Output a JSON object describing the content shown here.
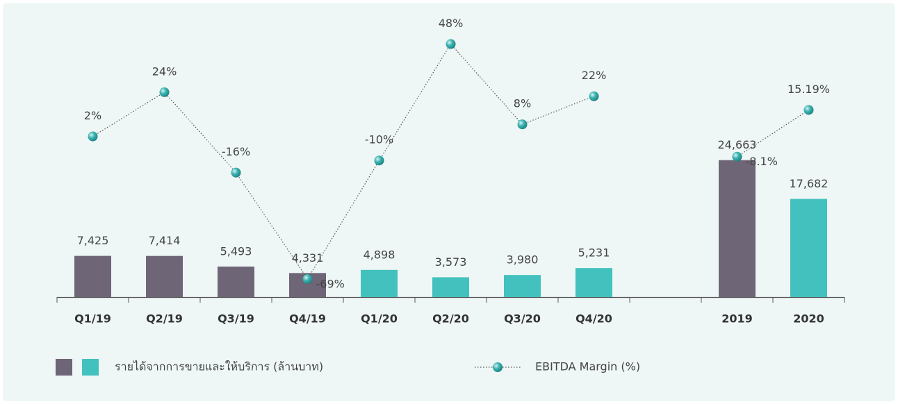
{
  "chart_data": {
    "type": "bar",
    "categories": [
      "Q1/19",
      "Q2/19",
      "Q3/19",
      "Q4/19",
      "Q1/20",
      "Q2/20",
      "Q3/20",
      "Q4/20",
      null,
      "2019",
      "2020"
    ],
    "ylim": [
      0,
      51000
    ],
    "y2lim": [
      -78,
      63
    ],
    "series": [
      {
        "name": "รายได้จากการขายและให้บริการ (ล้านบาท)",
        "type": "bar",
        "colors": [
          "#6e6577",
          "#6e6577",
          "#6e6577",
          "#6e6577",
          "#43c1be",
          "#43c1be",
          "#43c1be",
          "#43c1be",
          null,
          "#6e6577",
          "#43c1be"
        ],
        "legend_colors": [
          "#6e6577",
          "#43c1be"
        ],
        "values": [
          7425,
          7414,
          5493,
          4331,
          4898,
          3573,
          3980,
          5231,
          null,
          24663,
          17682
        ],
        "value_labels": [
          "7,425",
          "7,414",
          "5,493",
          "4,331",
          "4,898",
          "3,573",
          "3,980",
          "5,231",
          null,
          "24,663",
          "17,682"
        ]
      },
      {
        "name": "EBITDA Margin (%)",
        "type": "line",
        "axis": "y2",
        "color": "#2fa3a3",
        "values": [
          2,
          24,
          -16,
          -69,
          -10,
          48,
          8,
          22,
          null,
          -8.1,
          15.19
        ],
        "value_labels": [
          "2%",
          "24%",
          "-16%",
          "-69%",
          "-10%",
          "48%",
          "8%",
          "22%",
          null,
          "-8.1%",
          "15.19%"
        ]
      }
    ]
  }
}
